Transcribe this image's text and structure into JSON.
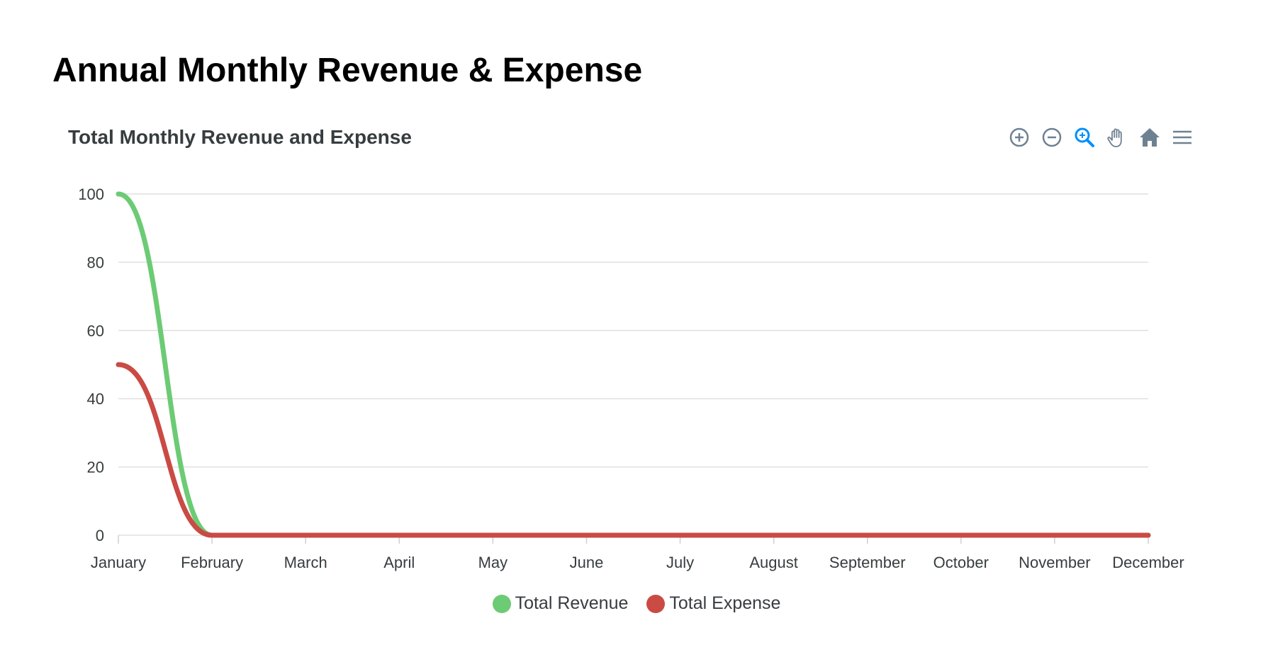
{
  "page": {
    "title": "Annual Monthly Revenue & Expense"
  },
  "toolbar": {
    "icons": [
      "zoom-in-icon",
      "zoom-out-icon",
      "selection-zoom-icon",
      "pan-hand-icon",
      "reset-home-icon",
      "menu-icon"
    ],
    "active_color": "#008ffb",
    "icon_color": "#6e8192"
  },
  "chart_data": {
    "type": "line",
    "title": "Total Monthly Revenue and Expense",
    "categories": [
      "January",
      "February",
      "March",
      "April",
      "May",
      "June",
      "July",
      "August",
      "September",
      "October",
      "November",
      "December"
    ],
    "y_ticks": [
      "0",
      "20",
      "40",
      "60",
      "80",
      "100"
    ],
    "ylim": [
      0,
      100
    ],
    "grid": true,
    "legend_position": "bottom-center",
    "curve": "smooth",
    "series": [
      {
        "name": "Total Revenue",
        "color": "#6ccb74",
        "values": [
          100,
          0,
          0,
          0,
          0,
          0,
          0,
          0,
          0,
          0,
          0,
          0
        ]
      },
      {
        "name": "Total Expense",
        "color": "#c94b44",
        "values": [
          50,
          0,
          0,
          0,
          0,
          0,
          0,
          0,
          0,
          0,
          0,
          0
        ]
      }
    ]
  }
}
